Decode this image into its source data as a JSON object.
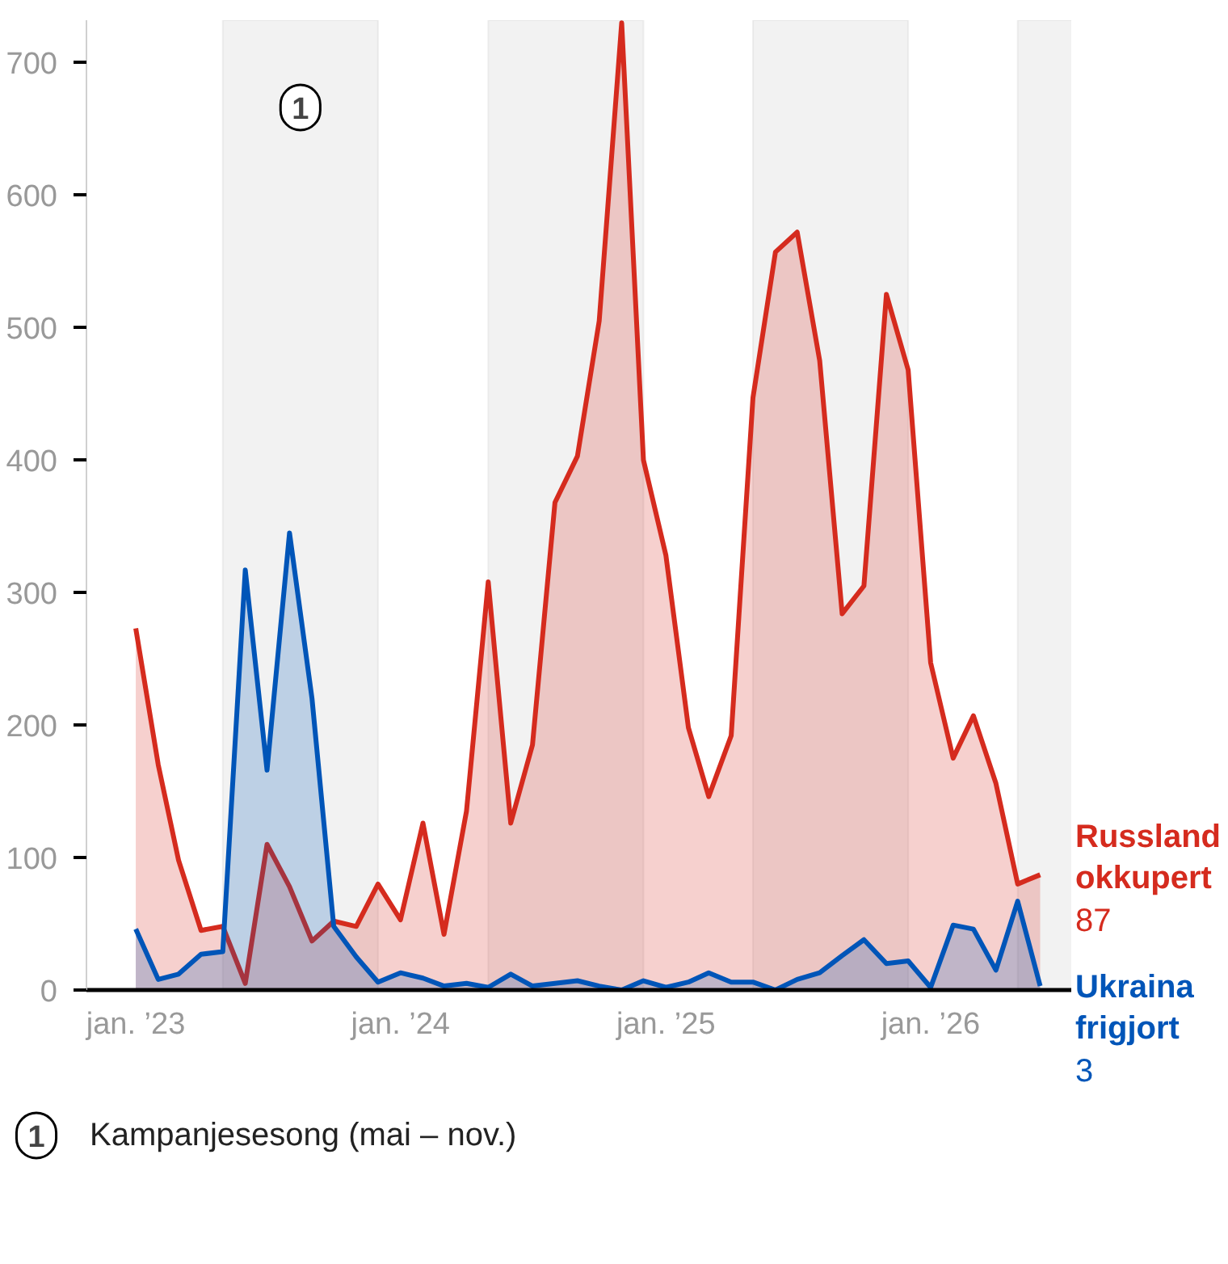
{
  "chart_data": {
    "type": "area",
    "x": [
      "2023-01",
      "2023-02",
      "2023-03",
      "2023-04",
      "2023-05",
      "2023-06",
      "2023-07",
      "2023-08",
      "2023-09",
      "2023-10",
      "2023-11",
      "2023-12",
      "2024-01",
      "2024-02",
      "2024-03",
      "2024-04",
      "2024-05",
      "2024-06",
      "2024-07",
      "2024-08",
      "2024-09",
      "2024-10",
      "2024-11",
      "2024-12",
      "2025-01",
      "2025-02",
      "2025-03",
      "2025-04",
      "2025-05",
      "2025-06",
      "2025-07",
      "2025-08",
      "2025-09",
      "2025-10",
      "2025-11",
      "2025-12",
      "2026-01",
      "2026-02",
      "2026-03",
      "2026-04",
      "2026-05",
      "2026-06"
    ],
    "series": [
      {
        "name": "Russland okkupert",
        "color": "#d52b1e",
        "values": [
          273,
          170,
          98,
          45,
          48,
          5,
          110,
          78,
          37,
          52,
          48,
          80,
          53,
          126,
          42,
          135,
          308,
          126,
          185,
          368,
          403,
          505,
          730,
          400,
          328,
          198,
          146,
          192,
          447,
          557,
          572,
          475,
          284,
          305,
          525,
          468,
          247,
          175,
          207,
          156,
          80,
          87
        ],
        "value_labels": [
          null,
          null,
          null,
          null,
          null,
          null,
          null,
          null,
          null,
          null,
          null,
          null,
          null,
          null,
          null,
          null,
          null,
          null,
          null,
          null,
          null,
          null,
          null,
          null,
          null,
          null,
          null,
          null,
          null,
          null,
          null,
          null,
          null,
          null,
          null,
          null,
          null,
          null,
          null,
          null,
          null,
          "87"
        ]
      },
      {
        "name": "Ukraina frigjort",
        "color": "#0055b8",
        "values": [
          46,
          8,
          12,
          27,
          29,
          317,
          166,
          345,
          220,
          48,
          25,
          6,
          13,
          9,
          3,
          5,
          2,
          12,
          3,
          5,
          7,
          3,
          0,
          7,
          2,
          6,
          13,
          6,
          6,
          0,
          8,
          13,
          26,
          38,
          20,
          22,
          2,
          49,
          46,
          15,
          67,
          3
        ],
        "value_labels": [
          null,
          null,
          null,
          null,
          null,
          null,
          null,
          null,
          null,
          null,
          null,
          null,
          null,
          null,
          null,
          null,
          null,
          null,
          null,
          null,
          null,
          null,
          null,
          null,
          null,
          null,
          null,
          null,
          null,
          null,
          null,
          null,
          null,
          null,
          null,
          null,
          null,
          null,
          null,
          null,
          null,
          "3"
        ]
      }
    ],
    "xlim": [
      "2022-10-25",
      "2026-07-15"
    ],
    "xticks": [
      {
        "value": "2023-01",
        "label": "jan. ’23"
      },
      {
        "value": "2024-01",
        "label": "jan. ’24"
      },
      {
        "value": "2025-01",
        "label": "jan. ’25"
      },
      {
        "value": "2026-01",
        "label": "jan. ’26"
      }
    ],
    "ylim": [
      0,
      732
    ],
    "yticks": [
      0,
      100,
      200,
      300,
      400,
      500,
      600,
      700
    ],
    "grid": false,
    "bands": [
      {
        "axis": "x",
        "from": "2023-05",
        "to": "2023-12",
        "label": "1",
        "color": "#f2f2f2"
      },
      {
        "axis": "x",
        "from": "2024-05",
        "to": "2024-12",
        "color": "#f2f2f2"
      },
      {
        "axis": "x",
        "from": "2025-05",
        "to": "2025-12",
        "color": "#f2f2f2"
      },
      {
        "axis": "x",
        "from": "2026-05",
        "to": "2026-07-15",
        "color": "#f2f2f2"
      }
    ],
    "annotations": [
      "Kampanjesesong (mai – nov.)"
    ]
  }
}
